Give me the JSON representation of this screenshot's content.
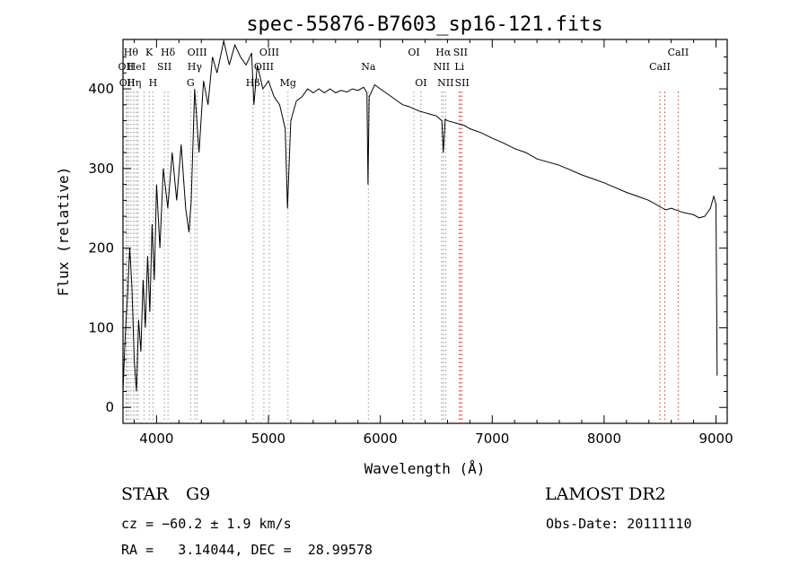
{
  "chart_data": {
    "type": "line",
    "title": "spec-55876-B7603_sp16-121.fits",
    "xlabel": "Wavelength (Å)",
    "ylabel": "Flux (relative)",
    "xlim": [
      3700,
      9100
    ],
    "ylim": [
      -20,
      462
    ],
    "xticks": [
      4000,
      5000,
      6000,
      7000,
      8000,
      9000
    ],
    "yticks": [
      0,
      100,
      200,
      300,
      400
    ],
    "grid": false,
    "series": [
      {
        "points": [
          [
            3700,
            20
          ],
          [
            3720,
            90
          ],
          [
            3740,
            140
          ],
          [
            3760,
            200
          ],
          [
            3780,
            150
          ],
          [
            3800,
            60
          ],
          [
            3820,
            20
          ],
          [
            3840,
            110
          ],
          [
            3860,
            70
          ],
          [
            3880,
            160
          ],
          [
            3900,
            100
          ],
          [
            3920,
            190
          ],
          [
            3940,
            120
          ],
          [
            3960,
            230
          ],
          [
            3980,
            160
          ],
          [
            4000,
            280
          ],
          [
            4030,
            200
          ],
          [
            4060,
            300
          ],
          [
            4100,
            250
          ],
          [
            4140,
            320
          ],
          [
            4180,
            260
          ],
          [
            4220,
            330
          ],
          [
            4260,
            250
          ],
          [
            4290,
            220
          ],
          [
            4310,
            260
          ],
          [
            4340,
            400
          ],
          [
            4380,
            320
          ],
          [
            4420,
            410
          ],
          [
            4460,
            380
          ],
          [
            4500,
            440
          ],
          [
            4540,
            420
          ],
          [
            4600,
            460
          ],
          [
            4650,
            430
          ],
          [
            4700,
            455
          ],
          [
            4750,
            440
          ],
          [
            4800,
            430
          ],
          [
            4850,
            445
          ],
          [
            4870,
            380
          ],
          [
            4900,
            430
          ],
          [
            4950,
            400
          ],
          [
            5000,
            410
          ],
          [
            5050,
            390
          ],
          [
            5100,
            380
          ],
          [
            5150,
            350
          ],
          [
            5170,
            250
          ],
          [
            5200,
            360
          ],
          [
            5250,
            385
          ],
          [
            5300,
            390
          ],
          [
            5350,
            400
          ],
          [
            5400,
            395
          ],
          [
            5450,
            400
          ],
          [
            5500,
            395
          ],
          [
            5550,
            400
          ],
          [
            5600,
            395
          ],
          [
            5650,
            398
          ],
          [
            5700,
            396
          ],
          [
            5750,
            400
          ],
          [
            5800,
            398
          ],
          [
            5850,
            402
          ],
          [
            5880,
            395
          ],
          [
            5890,
            280
          ],
          [
            5900,
            390
          ],
          [
            5950,
            405
          ],
          [
            6000,
            400
          ],
          [
            6050,
            395
          ],
          [
            6100,
            390
          ],
          [
            6150,
            385
          ],
          [
            6200,
            380
          ],
          [
            6250,
            378
          ],
          [
            6300,
            375
          ],
          [
            6350,
            372
          ],
          [
            6400,
            370
          ],
          [
            6450,
            368
          ],
          [
            6500,
            366
          ],
          [
            6550,
            360
          ],
          [
            6563,
            320
          ],
          [
            6580,
            362
          ],
          [
            6600,
            360
          ],
          [
            6650,
            358
          ],
          [
            6700,
            356
          ],
          [
            6750,
            354
          ],
          [
            6800,
            350
          ],
          [
            6900,
            345
          ],
          [
            7000,
            338
          ],
          [
            7100,
            332
          ],
          [
            7200,
            325
          ],
          [
            7300,
            320
          ],
          [
            7400,
            312
          ],
          [
            7500,
            308
          ],
          [
            7600,
            304
          ],
          [
            7700,
            298
          ],
          [
            7800,
            292
          ],
          [
            7900,
            287
          ],
          [
            8000,
            282
          ],
          [
            8100,
            276
          ],
          [
            8200,
            270
          ],
          [
            8300,
            265
          ],
          [
            8400,
            260
          ],
          [
            8500,
            252
          ],
          [
            8550,
            248
          ],
          [
            8600,
            250
          ],
          [
            8700,
            245
          ],
          [
            8800,
            242
          ],
          [
            8850,
            238
          ],
          [
            8900,
            240
          ],
          [
            8950,
            250
          ],
          [
            8980,
            265
          ],
          [
            9000,
            255
          ],
          [
            9010,
            40
          ]
        ]
      }
    ],
    "lines": [
      {
        "wave": 3727,
        "label": "OII",
        "row": 1
      },
      {
        "wave": 3737,
        "label": "OII",
        "row": 2
      },
      {
        "wave": 3751,
        "label": "",
        "row": 0
      },
      {
        "wave": 3771,
        "label": "Hθ",
        "row": 0
      },
      {
        "wave": 3797,
        "label": "",
        "row": 0
      },
      {
        "wave": 3798,
        "label": "Hη",
        "row": 2
      },
      {
        "wave": 3820,
        "label": "HeI",
        "row": 1
      },
      {
        "wave": 3835,
        "label": "",
        "row": 0
      },
      {
        "wave": 3889,
        "label": "",
        "row": 0
      },
      {
        "wave": 3934,
        "label": "K",
        "row": 0
      },
      {
        "wave": 3968,
        "label": "H",
        "row": 2
      },
      {
        "wave": 4070,
        "label": "SII",
        "row": 1
      },
      {
        "wave": 4102,
        "label": "Hδ",
        "row": 0
      },
      {
        "wave": 4304,
        "label": "G",
        "row": 2
      },
      {
        "wave": 4341,
        "label": "Hγ",
        "row": 1
      },
      {
        "wave": 4363,
        "label": "OIII",
        "row": 0
      },
      {
        "wave": 4861,
        "label": "Hβ",
        "row": 2
      },
      {
        "wave": 4959,
        "label": "OIII",
        "row": 1
      },
      {
        "wave": 5007,
        "label": "OIII",
        "row": 0
      },
      {
        "wave": 5175,
        "label": "Mg",
        "row": 2
      },
      {
        "wave": 5893,
        "label": "Na",
        "row": 1
      },
      {
        "wave": 6300,
        "label": "OI",
        "row": 0
      },
      {
        "wave": 6363,
        "label": "OI",
        "row": 2
      },
      {
        "wave": 6548,
        "label": "NII",
        "row": 1
      },
      {
        "wave": 6563,
        "label": "Hα",
        "row": 0
      },
      {
        "wave": 6583,
        "label": "NII",
        "row": 2
      },
      {
        "wave": 6707,
        "label": "Li",
        "row": 1
      },
      {
        "wave": 6716,
        "label": "SII",
        "row": 0
      },
      {
        "wave": 6731,
        "label": "SII",
        "row": 2
      },
      {
        "wave": 8498,
        "label": "CaII",
        "row": 1
      },
      {
        "wave": 8542,
        "label": "",
        "row": 0
      },
      {
        "wave": 8662,
        "label": "CaII",
        "row": 0
      }
    ]
  },
  "info": {
    "object_class": "STAR",
    "subclass": "G9",
    "survey": "LAMOST DR2",
    "redshift_line": "cz = −60.2 ± 1.9 km/s",
    "obs_date_line": "Obs-Date: 20111110",
    "coords_line": "RA =   3.14044, DEC =  28.99578"
  }
}
